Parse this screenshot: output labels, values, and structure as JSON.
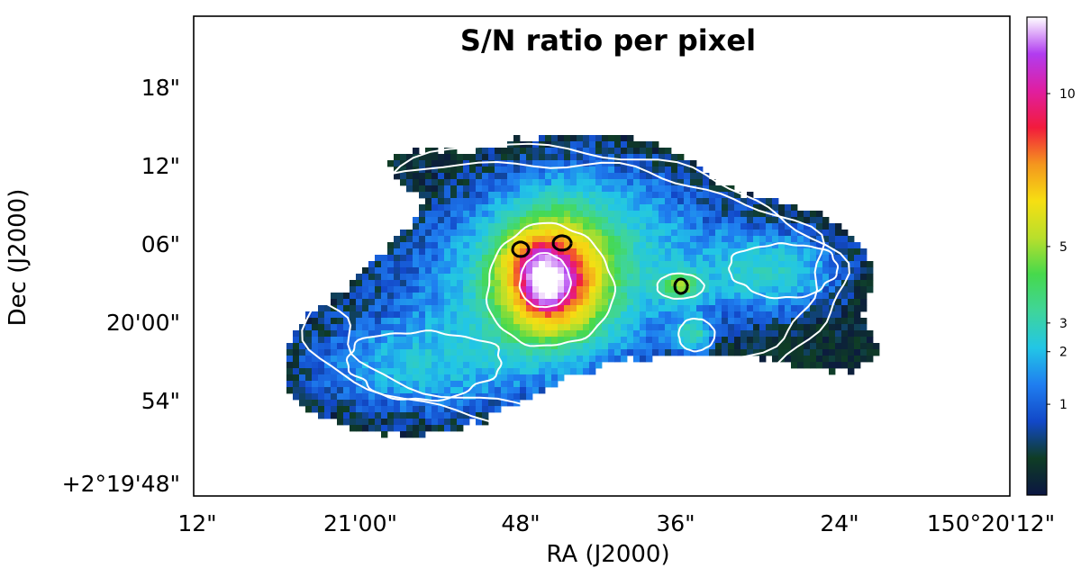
{
  "chart_data": {
    "type": "heatmap",
    "title": "S/N ratio per pixel",
    "xlabel": "RA (J2000)",
    "ylabel": "Dec (J2000)",
    "x_ticks": [
      "12\"",
      "21'00\"",
      "48\"",
      "36\"",
      "24\"",
      "150°20'12\""
    ],
    "y_ticks": [
      "18\"",
      "12\"",
      "06\"",
      "20'00\"",
      "54\"",
      "+2°19'48\""
    ],
    "colorbar": {
      "ticks": [
        "1",
        "2",
        "3",
        "5",
        "10"
      ],
      "tick_values": [
        1,
        2,
        3,
        5,
        10
      ],
      "range": [
        0,
        13
      ]
    },
    "colormap": [
      "#0b1642",
      "#0f3d25",
      "#1248c8",
      "#1f7ef0",
      "#22c6e6",
      "#3fd59a",
      "#46d94c",
      "#b8df2c",
      "#f6df12",
      "#f4961e",
      "#f21b3c",
      "#e01ea0",
      "#b13cf0",
      "#ffffff"
    ],
    "contour_levels": {
      "white": [
        1,
        2,
        3,
        5,
        10
      ],
      "black": [
        8
      ]
    }
  }
}
